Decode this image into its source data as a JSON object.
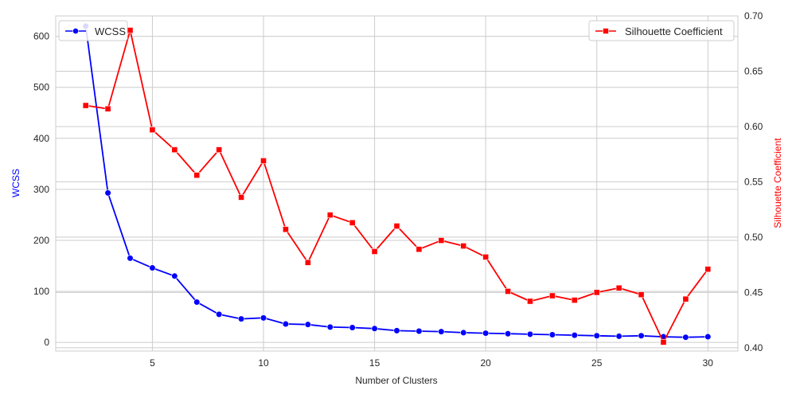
{
  "chart_data": {
    "type": "line",
    "xlabel": "Number of Clusters",
    "y_left_label": "WCSS",
    "y_right_label": "Silhouette Coefficient",
    "x_range": [
      0.65,
      31.35
    ],
    "y_left_range": [
      -17,
      640
    ],
    "y_right_range": [
      0.397,
      0.7
    ],
    "x_ticks": [
      5,
      10,
      15,
      20,
      25,
      30
    ],
    "y_left_ticks": [
      0,
      100,
      200,
      300,
      400,
      500,
      600
    ],
    "y_right_ticks": [
      "0.40",
      "0.45",
      "0.50",
      "0.55",
      "0.60",
      "0.65",
      "0.70"
    ],
    "grid": true,
    "colors": {
      "wcss": "#0000ff",
      "silhouette": "#ff0000",
      "grid": "#cccccc",
      "spine": "#cccccc"
    },
    "series": [
      {
        "name": "WCSS",
        "axis": "left",
        "marker": "circle",
        "x": [
          2,
          3,
          4,
          5,
          6,
          7,
          8,
          9,
          10,
          11,
          12,
          13,
          14,
          15,
          16,
          17,
          18,
          19,
          20,
          21,
          22,
          23,
          24,
          25,
          26,
          27,
          28,
          29,
          30
        ],
        "values": [
          620,
          293,
          165,
          146,
          130,
          79,
          55,
          46,
          48,
          36,
          35,
          30,
          29,
          27,
          23,
          22,
          21,
          19,
          18,
          17,
          16,
          15,
          14,
          13,
          12,
          13,
          11,
          10,
          11
        ]
      },
      {
        "name": "Silhouette Coefficient",
        "axis": "right",
        "marker": "square",
        "x": [
          2,
          3,
          4,
          5,
          6,
          7,
          8,
          9,
          10,
          11,
          12,
          13,
          14,
          15,
          16,
          17,
          18,
          19,
          20,
          21,
          22,
          23,
          24,
          25,
          26,
          27,
          28,
          29,
          30
        ],
        "values": [
          0.619,
          0.616,
          0.687,
          0.597,
          0.579,
          0.556,
          0.579,
          0.536,
          0.569,
          0.507,
          0.477,
          0.52,
          0.513,
          0.487,
          0.51,
          0.489,
          0.497,
          0.492,
          0.482,
          0.451,
          0.442,
          0.447,
          0.443,
          0.45,
          0.454,
          0.448,
          0.405,
          0.444,
          0.471
        ]
      }
    ],
    "legend_left": {
      "label": "WCSS",
      "placement": "top-left"
    },
    "legend_right": {
      "label": "Silhouette Coefficient",
      "placement": "top-right"
    }
  }
}
